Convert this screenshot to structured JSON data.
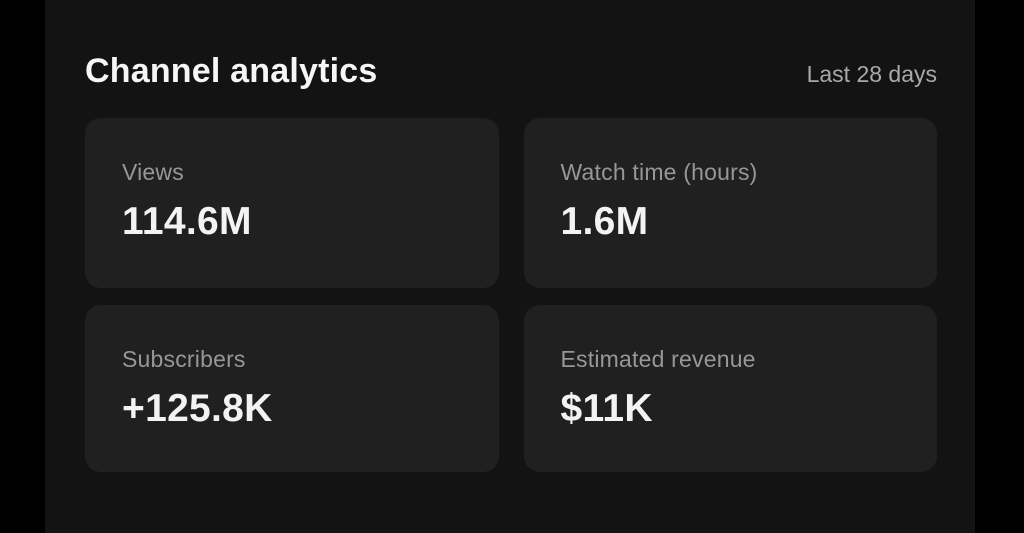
{
  "page": {
    "title": "Channel analytics",
    "date_range": "Last 28 days"
  },
  "cards": [
    {
      "label": "Views",
      "value": "114.6M"
    },
    {
      "label": "Watch time (hours)",
      "value": "1.6M"
    },
    {
      "label": "Subscribers",
      "value": "+125.8K"
    },
    {
      "label": "Estimated revenue",
      "value": "$11K"
    }
  ],
  "colors": {
    "outer_background": "#000000",
    "panel_background": "#131313",
    "card_background": "#202020",
    "title_text": "#f6f6f6",
    "label_text": "#979797",
    "value_text": "#f3f3f3",
    "date_range_text": "#a9a9a9"
  }
}
